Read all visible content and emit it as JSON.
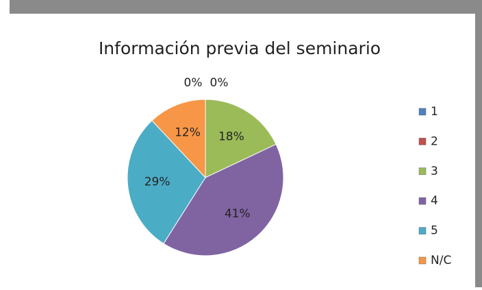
{
  "chart_data": {
    "type": "pie",
    "title": "Información previa del seminario",
    "categories": [
      "1",
      "2",
      "3",
      "4",
      "5",
      "N/C"
    ],
    "values": [
      0,
      0,
      18,
      41,
      29,
      12
    ],
    "value_labels": [
      "0%",
      "0%",
      "18%",
      "41%",
      "29%",
      "12%"
    ],
    "colors": [
      "#4f81bd",
      "#c0504d",
      "#9bbb59",
      "#8064a2",
      "#4bacc6",
      "#f79646"
    ],
    "legend": "right"
  }
}
